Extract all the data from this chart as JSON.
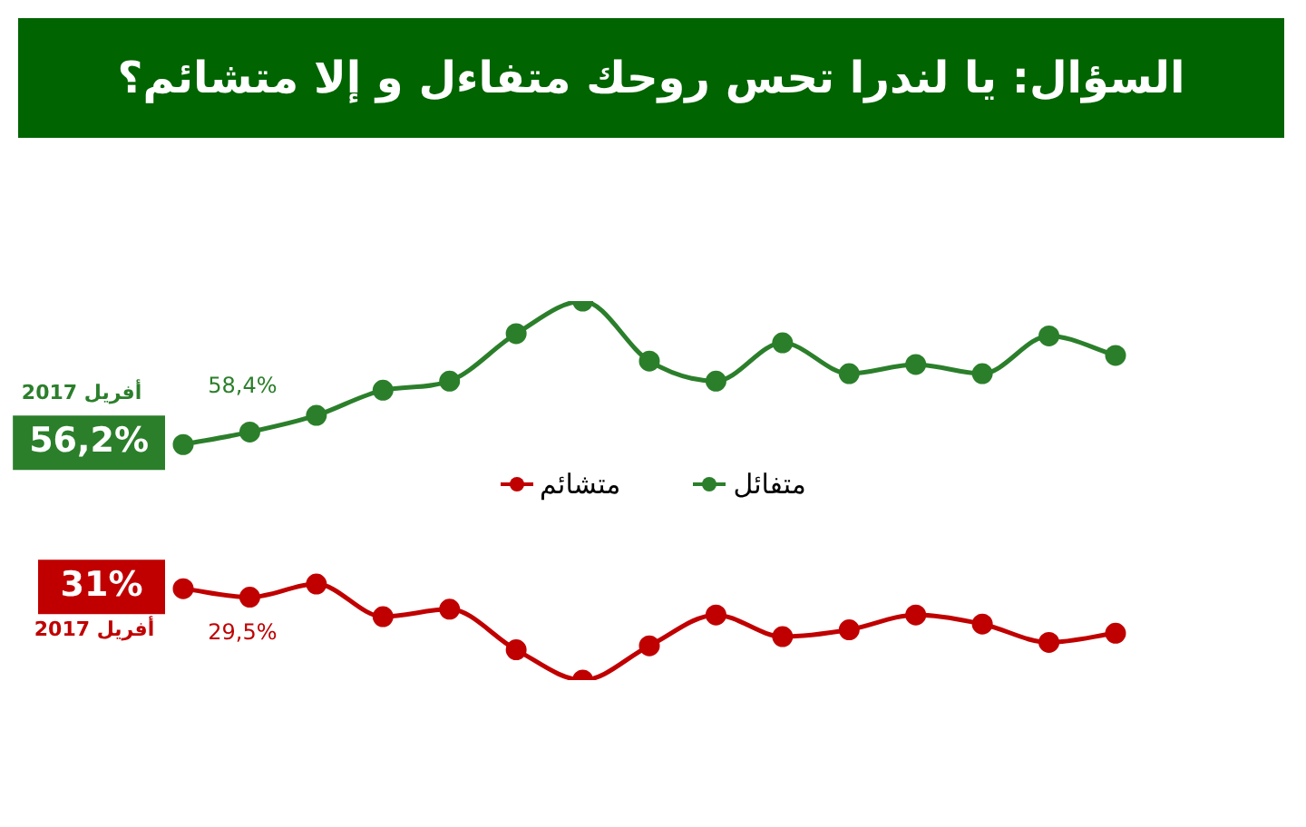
{
  "chart_data": {
    "type": "line",
    "title": "السؤال: يا لندرا تحس روحك متفاءل و إلا متشائم؟",
    "tick_labels": false,
    "legend": "center",
    "marker": "circle",
    "line_style": "solid",
    "categories": [
      null,
      null,
      null,
      null,
      null,
      null,
      null,
      null,
      null,
      null,
      null,
      null,
      null,
      null,
      null
    ],
    "series": [
      {
        "name": "متفائل",
        "color": "#2b7f2b",
        "values": [
          56.2,
          58.4,
          61.3,
          65.7,
          67.3,
          75.6,
          81.3,
          70.8,
          67.3,
          74.0,
          68.6,
          70.2,
          68.6,
          75.2,
          71.8
        ],
        "value_labels": [
          "56,2%",
          "58,4%",
          null,
          null,
          null,
          null,
          null,
          null,
          null,
          null,
          null,
          null,
          null,
          null,
          null
        ]
      },
      {
        "name": "متشائم",
        "color": "#c00000",
        "values": [
          31,
          29.5,
          31.8,
          26.1,
          27.4,
          20.3,
          15.0,
          21.0,
          26.4,
          22.6,
          23.8,
          26.4,
          24.8,
          21.6,
          23.2
        ],
        "value_labels": [
          "31%",
          "29,5%",
          null,
          null,
          null,
          null,
          null,
          null,
          null,
          null,
          null,
          null,
          null,
          null,
          null
        ]
      }
    ],
    "annotations": [
      "أفريل 2017",
      "أفريل 2017"
    ]
  }
}
